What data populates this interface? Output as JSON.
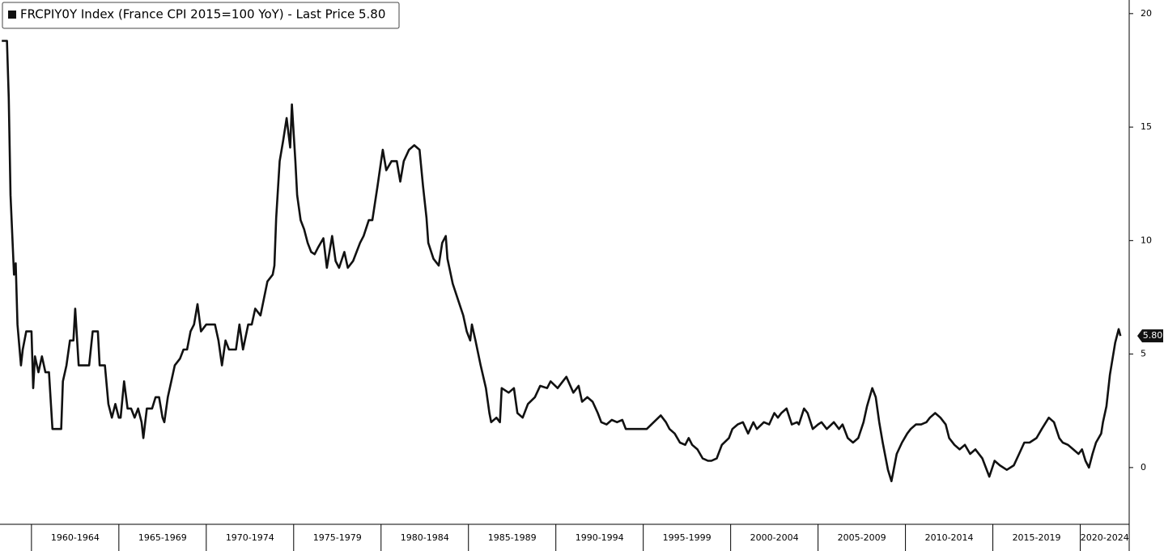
{
  "chart_data": {
    "type": "line",
    "title": "FRCPIY0Y Index (France CPI 2015=100 YoY) - Last Price 5.80",
    "last_price": {
      "value": 5.8,
      "label": "5.80"
    },
    "xlim": [
      1958.2,
      2022.8
    ],
    "xticks": [
      {
        "value": 1962.5,
        "label": "1960-1964"
      },
      {
        "value": 1967.5,
        "label": "1965-1969"
      },
      {
        "value": 1972.5,
        "label": "1970-1974"
      },
      {
        "value": 1977.5,
        "label": "1975-1979"
      },
      {
        "value": 1982.5,
        "label": "1980-1984"
      },
      {
        "value": 1987.5,
        "label": "1985-1989"
      },
      {
        "value": 1992.5,
        "label": "1990-1994"
      },
      {
        "value": 1997.5,
        "label": "1995-1999"
      },
      {
        "value": 2002.5,
        "label": "2000-2004"
      },
      {
        "value": 2007.5,
        "label": "2005-2009"
      },
      {
        "value": 2012.5,
        "label": "2010-2014"
      },
      {
        "value": 2017.5,
        "label": "2015-2019"
      },
      {
        "value": 2022.5,
        "label": "2020-2024"
      }
    ],
    "ylim": [
      -2.5,
      20.6
    ],
    "yticks": [
      0,
      5,
      10,
      15,
      20
    ],
    "grid": false,
    "series": [
      {
        "name": "FRCPIY0Y Index",
        "color": "#111111",
        "x": [
          1958.3,
          1958.6,
          1958.7,
          1958.8,
          1959.0,
          1959.1,
          1959.2,
          1959.4,
          1959.5,
          1959.7,
          1960.0,
          1960.1,
          1960.2,
          1960.4,
          1960.6,
          1960.8,
          1961.0,
          1961.2,
          1961.7,
          1961.8,
          1962.0,
          1962.2,
          1962.4,
          1962.5,
          1962.7,
          1963.3,
          1963.5,
          1963.8,
          1963.9,
          1964.2,
          1964.4,
          1964.6,
          1964.8,
          1965.0,
          1965.1,
          1965.3,
          1965.5,
          1965.7,
          1965.9,
          1966.1,
          1966.3,
          1966.4,
          1966.6,
          1966.9,
          1967.1,
          1967.3,
          1967.5,
          1967.6,
          1967.8,
          1968.0,
          1968.2,
          1968.5,
          1968.7,
          1968.9,
          1969.1,
          1969.3,
          1969.5,
          1969.7,
          1970.0,
          1970.2,
          1970.5,
          1970.7,
          1970.9,
          1971.1,
          1971.3,
          1971.7,
          1971.9,
          1972.1,
          1972.4,
          1972.6,
          1972.8,
          1973.1,
          1973.5,
          1973.8,
          1973.9,
          1974.0,
          1974.2,
          1974.4,
          1974.6,
          1974.8,
          1974.9,
          1975.1,
          1975.2,
          1975.4,
          1975.6,
          1975.8,
          1976.0,
          1976.2,
          1976.4,
          1976.7,
          1976.9,
          1977.2,
          1977.4,
          1977.6,
          1977.9,
          1978.1,
          1978.4,
          1978.6,
          1978.8,
          1979.0,
          1979.3,
          1979.5,
          1979.8,
          1980.0,
          1980.1,
          1980.3,
          1980.6,
          1980.9,
          1981.1,
          1981.3,
          1981.6,
          1981.9,
          1982.2,
          1982.4,
          1982.6,
          1982.7,
          1983.0,
          1983.3,
          1983.5,
          1983.7,
          1983.8,
          1984.1,
          1984.4,
          1984.7,
          1984.9,
          1985.1,
          1985.2,
          1985.4,
          1985.7,
          1986.0,
          1986.2,
          1986.3,
          1986.6,
          1986.8,
          1986.9,
          1987.3,
          1987.6,
          1987.8,
          1988.1,
          1988.4,
          1988.8,
          1989.1,
          1989.5,
          1989.7,
          1990.1,
          1990.4,
          1990.6,
          1991.0,
          1991.3,
          1991.5,
          1991.8,
          1992.1,
          1992.4,
          1992.6,
          1992.9,
          1993.2,
          1993.5,
          1993.8,
          1994.0,
          1994.3,
          1994.8,
          1995.2,
          1995.6,
          1996.0,
          1996.3,
          1996.5,
          1996.8,
          1997.1,
          1997.4,
          1997.6,
          1997.8,
          1998.1,
          1998.4,
          1998.7,
          1998.9,
          1999.2,
          1999.5,
          1999.9,
          2000.1,
          2000.4,
          2000.7,
          2001.0,
          2001.3,
          2001.5,
          2001.9,
          2002.2,
          2002.5,
          2002.7,
          2002.9,
          2003.2,
          2003.5,
          2003.8,
          2003.9,
          2004.2,
          2004.4,
          2004.7,
          2005.0,
          2005.2,
          2005.5,
          2005.9,
          2006.2,
          2006.4,
          2006.7,
          2007.0,
          2007.3,
          2007.6,
          2007.8,
          2008.1,
          2008.3,
          2008.5,
          2008.7,
          2009.0,
          2009.2,
          2009.5,
          2009.8,
          2010.1,
          2010.3,
          2010.6,
          2010.9,
          2011.2,
          2011.4,
          2011.7,
          2012.0,
          2012.3,
          2012.5,
          2012.8,
          2013.1,
          2013.4,
          2013.7,
          2014.0,
          2014.4,
          2014.8,
          2015.1,
          2015.4,
          2015.8,
          2016.2,
          2016.5,
          2016.8,
          2017.1,
          2017.5,
          2017.8,
          2018.2,
          2018.5,
          2018.8,
          2019.0,
          2019.3,
          2019.6,
          2019.9,
          2020.1,
          2020.3,
          2020.5,
          2020.7,
          2020.9,
          2021.2,
          2021.3,
          2021.5,
          2021.7,
          2022.0,
          2022.2,
          2022.3
        ],
        "values": [
          18.8,
          18.8,
          16.3,
          12.0,
          8.5,
          9.0,
          6.3,
          4.5,
          5.2,
          6.0,
          6.0,
          3.5,
          4.9,
          4.2,
          4.9,
          4.2,
          4.2,
          1.7,
          1.7,
          3.8,
          4.5,
          5.6,
          5.6,
          7.0,
          4.5,
          4.5,
          6.0,
          6.0,
          4.5,
          4.5,
          2.8,
          2.2,
          2.8,
          2.2,
          2.2,
          3.8,
          2.6,
          2.6,
          2.2,
          2.6,
          2.0,
          1.3,
          2.6,
          2.6,
          3.1,
          3.1,
          2.2,
          2.0,
          3.1,
          3.8,
          4.5,
          4.8,
          5.2,
          5.2,
          6.0,
          6.3,
          7.2,
          6.0,
          6.3,
          6.3,
          6.3,
          5.6,
          4.5,
          5.6,
          5.2,
          5.2,
          6.3,
          5.2,
          6.3,
          6.3,
          7.0,
          6.7,
          8.2,
          8.5,
          8.9,
          11.0,
          13.5,
          14.4,
          15.4,
          14.1,
          16.0,
          13.5,
          12.0,
          10.9,
          10.5,
          9.9,
          9.5,
          9.4,
          9.7,
          10.1,
          8.8,
          10.2,
          9.1,
          8.8,
          9.5,
          8.8,
          9.1,
          9.5,
          9.9,
          10.2,
          10.9,
          10.9,
          12.4,
          13.5,
          14.0,
          13.1,
          13.5,
          13.5,
          12.6,
          13.5,
          14.0,
          14.2,
          14.0,
          12.4,
          11.0,
          9.9,
          9.2,
          8.9,
          9.9,
          10.2,
          9.2,
          8.1,
          7.4,
          6.7,
          6.0,
          5.6,
          6.3,
          5.6,
          4.5,
          3.5,
          2.4,
          2.0,
          2.2,
          2.0,
          3.5,
          3.3,
          3.5,
          2.4,
          2.2,
          2.8,
          3.1,
          3.6,
          3.5,
          3.8,
          3.5,
          3.8,
          4.0,
          3.3,
          3.6,
          2.9,
          3.1,
          2.9,
          2.4,
          2.0,
          1.9,
          2.1,
          2.0,
          2.1,
          1.7,
          1.7,
          1.7,
          1.7,
          2.0,
          2.3,
          2.0,
          1.7,
          1.5,
          1.1,
          1.0,
          1.3,
          1.0,
          0.8,
          0.4,
          0.3,
          0.3,
          0.4,
          1.0,
          1.3,
          1.7,
          1.9,
          2.0,
          1.5,
          2.0,
          1.7,
          2.0,
          1.9,
          2.4,
          2.2,
          2.4,
          2.6,
          1.9,
          2.0,
          1.9,
          2.6,
          2.4,
          1.7,
          1.9,
          2.0,
          1.7,
          2.0,
          1.7,
          1.9,
          1.3,
          1.1,
          1.3,
          2.0,
          2.7,
          3.5,
          3.1,
          2.0,
          1.1,
          -0.1,
          -0.6,
          0.6,
          1.1,
          1.5,
          1.7,
          1.9,
          1.9,
          2.0,
          2.2,
          2.4,
          2.2,
          1.9,
          1.3,
          1.0,
          0.8,
          1.0,
          0.6,
          0.8,
          0.4,
          -0.4,
          0.3,
          0.1,
          -0.1,
          0.1,
          0.6,
          1.1,
          1.1,
          1.3,
          1.7,
          2.2,
          2.0,
          1.3,
          1.1,
          1.0,
          0.8,
          0.6,
          0.8,
          0.3,
          0.0,
          0.6,
          1.1,
          1.5,
          2.0,
          2.7,
          4.1,
          5.5,
          6.1,
          5.8
        ]
      }
    ]
  }
}
